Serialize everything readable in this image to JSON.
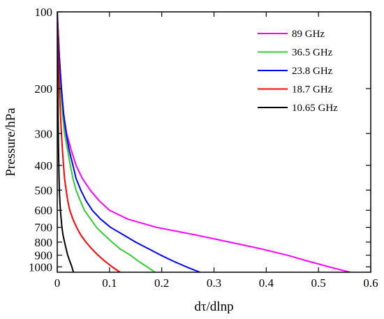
{
  "chart_data": {
    "type": "line",
    "title": "",
    "xlabel": "dτ/dlnp",
    "ylabel": "Pressure/hPa",
    "xlim": [
      0,
      0.6
    ],
    "ylim": [
      100,
      1050
    ],
    "y_scale": "log",
    "y_inverted": true,
    "x_ticks": [
      {
        "value": 0,
        "label": "0"
      },
      {
        "value": 0.1,
        "label": "0.1"
      },
      {
        "value": 0.2,
        "label": "0.2"
      },
      {
        "value": 0.3,
        "label": "0.3"
      },
      {
        "value": 0.4,
        "label": "0.4"
      },
      {
        "value": 0.5,
        "label": "0.5"
      },
      {
        "value": 0.6,
        "label": "0.6"
      }
    ],
    "y_ticks": [
      {
        "value": 100,
        "label": "100"
      },
      {
        "value": 200,
        "label": "200"
      },
      {
        "value": 300,
        "label": "300"
      },
      {
        "value": 400,
        "label": "400"
      },
      {
        "value": 500,
        "label": "500"
      },
      {
        "value": 600,
        "label": "600"
      },
      {
        "value": 700,
        "label": "700"
      },
      {
        "value": 800,
        "label": "800"
      },
      {
        "value": 900,
        "label": "900"
      },
      {
        "value": 1000,
        "label": "1000"
      }
    ],
    "grid": false,
    "legend_position": "top-right",
    "series": [
      {
        "name": "89 GHz",
        "color": "#ff00ff",
        "points": [
          [
            0.0,
            100
          ],
          [
            0.004,
            150
          ],
          [
            0.008,
            200
          ],
          [
            0.012,
            250
          ],
          [
            0.018,
            300
          ],
          [
            0.027,
            350
          ],
          [
            0.036,
            400
          ],
          [
            0.048,
            450
          ],
          [
            0.063,
            500
          ],
          [
            0.08,
            550
          ],
          [
            0.1,
            600
          ],
          [
            0.135,
            650
          ],
          [
            0.19,
            700
          ],
          [
            0.265,
            750
          ],
          [
            0.33,
            800
          ],
          [
            0.39,
            850
          ],
          [
            0.44,
            900
          ],
          [
            0.48,
            950
          ],
          [
            0.52,
            1000
          ],
          [
            0.56,
            1050
          ]
        ]
      },
      {
        "name": "36.5 GHz",
        "color": "#33cc33",
        "points": [
          [
            0.0,
            100
          ],
          [
            0.003,
            150
          ],
          [
            0.006,
            200
          ],
          [
            0.01,
            250
          ],
          [
            0.014,
            300
          ],
          [
            0.02,
            350
          ],
          [
            0.025,
            400
          ],
          [
            0.03,
            450
          ],
          [
            0.036,
            500
          ],
          [
            0.044,
            550
          ],
          [
            0.052,
            600
          ],
          [
            0.064,
            650
          ],
          [
            0.075,
            700
          ],
          [
            0.09,
            750
          ],
          [
            0.105,
            800
          ],
          [
            0.12,
            850
          ],
          [
            0.14,
            900
          ],
          [
            0.155,
            950
          ],
          [
            0.172,
            1000
          ],
          [
            0.187,
            1050
          ]
        ]
      },
      {
        "name": "23.8 GHz",
        "color": "#0000ff",
        "points": [
          [
            0.0,
            100
          ],
          [
            0.004,
            150
          ],
          [
            0.008,
            200
          ],
          [
            0.012,
            250
          ],
          [
            0.017,
            300
          ],
          [
            0.023,
            350
          ],
          [
            0.03,
            400
          ],
          [
            0.036,
            450
          ],
          [
            0.045,
            500
          ],
          [
            0.055,
            550
          ],
          [
            0.067,
            600
          ],
          [
            0.083,
            650
          ],
          [
            0.102,
            700
          ],
          [
            0.127,
            750
          ],
          [
            0.15,
            800
          ],
          [
            0.175,
            850
          ],
          [
            0.198,
            900
          ],
          [
            0.222,
            950
          ],
          [
            0.247,
            1000
          ],
          [
            0.273,
            1050
          ]
        ]
      },
      {
        "name": "18.7 GHz",
        "color": "#ff0000",
        "points": [
          [
            0.0,
            100
          ],
          [
            0.002,
            150
          ],
          [
            0.004,
            200
          ],
          [
            0.006,
            250
          ],
          [
            0.008,
            300
          ],
          [
            0.01,
            350
          ],
          [
            0.012,
            400
          ],
          [
            0.014,
            450
          ],
          [
            0.017,
            500
          ],
          [
            0.02,
            550
          ],
          [
            0.024,
            600
          ],
          [
            0.03,
            650
          ],
          [
            0.037,
            700
          ],
          [
            0.045,
            750
          ],
          [
            0.055,
            800
          ],
          [
            0.066,
            850
          ],
          [
            0.078,
            900
          ],
          [
            0.091,
            950
          ],
          [
            0.105,
            1000
          ],
          [
            0.12,
            1050
          ]
        ]
      },
      {
        "name": "10.65 GHz",
        "color": "#000000",
        "points": [
          [
            0.0,
            100
          ],
          [
            0.0005,
            150
          ],
          [
            0.001,
            200
          ],
          [
            0.0015,
            250
          ],
          [
            0.002,
            300
          ],
          [
            0.0025,
            350
          ],
          [
            0.003,
            400
          ],
          [
            0.0035,
            450
          ],
          [
            0.004,
            500
          ],
          [
            0.005,
            550
          ],
          [
            0.006,
            600
          ],
          [
            0.0075,
            650
          ],
          [
            0.009,
            700
          ],
          [
            0.011,
            750
          ],
          [
            0.014,
            800
          ],
          [
            0.017,
            850
          ],
          [
            0.02,
            900
          ],
          [
            0.024,
            950
          ],
          [
            0.028,
            1000
          ],
          [
            0.031,
            1050
          ]
        ]
      }
    ]
  }
}
